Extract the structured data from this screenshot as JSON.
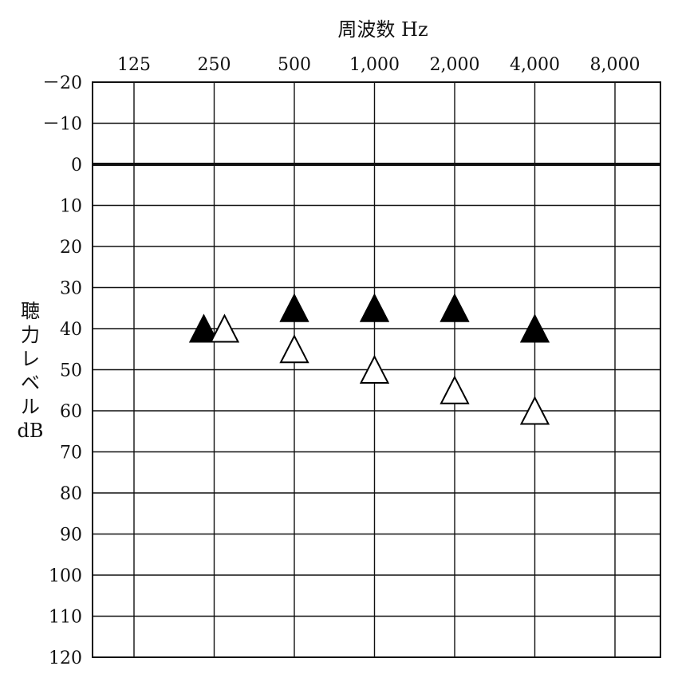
{
  "chart_data": {
    "type": "scatter",
    "title": "",
    "xlabel": "周波数 Hz",
    "ylabel_lines": [
      "聴",
      "力",
      "レ",
      "ベ",
      "ル",
      "dB"
    ],
    "x_categories": [
      "125",
      "250",
      "500",
      "1,000",
      "2,000",
      "4,000",
      "8,000"
    ],
    "x_values_hz": [
      125,
      250,
      500,
      1000,
      2000,
      4000,
      8000
    ],
    "y_ticks": [
      -20,
      -10,
      0,
      10,
      20,
      30,
      40,
      50,
      60,
      70,
      80,
      90,
      100,
      110,
      120
    ],
    "y_tick_labels": [
      "－20",
      "－10",
      "0",
      "10",
      "20",
      "30",
      "40",
      "50",
      "60",
      "70",
      "80",
      "90",
      "100",
      "110",
      "120"
    ],
    "ylim": [
      -20,
      120
    ],
    "y_inverted": true,
    "zero_line_emphasized": true,
    "grid": true,
    "series": [
      {
        "marker": "filled-triangle",
        "color": "#000000",
        "points": [
          {
            "x": 250,
            "y": 40
          },
          {
            "x": 500,
            "y": 35
          },
          {
            "x": 1000,
            "y": 35
          },
          {
            "x": 2000,
            "y": 35
          },
          {
            "x": 4000,
            "y": 40
          }
        ]
      },
      {
        "marker": "open-triangle",
        "color": "#000000",
        "points": [
          {
            "x": 250,
            "y": 40
          },
          {
            "x": 500,
            "y": 45
          },
          {
            "x": 1000,
            "y": 50
          },
          {
            "x": 2000,
            "y": 55
          },
          {
            "x": 4000,
            "y": 60
          }
        ]
      }
    ]
  }
}
